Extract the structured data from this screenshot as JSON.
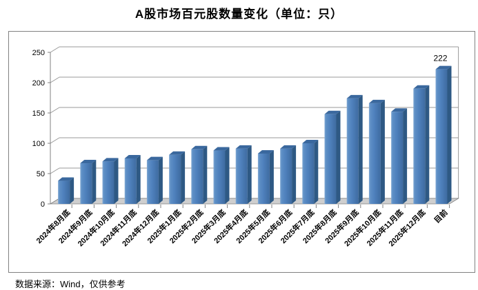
{
  "chart_data": {
    "type": "bar",
    "style": "3d-column",
    "title": "A股市场百元股数量变化（单位：只）",
    "categories": [
      "2024年8月底",
      "2024年9月底",
      "2024年10月底",
      "2024年11月底",
      "2024年12月底",
      "2025年1月底",
      "2025年2月底",
      "2025年3月底",
      "2025年4月底",
      "2025年5月底",
      "2025年6月底",
      "2025年7月底",
      "2025年8月底",
      "2025年9月底",
      "2025年10月底",
      "2025年11月底",
      "2025年12月底",
      "目前"
    ],
    "values": [
      38,
      67,
      70,
      75,
      72,
      81,
      90,
      88,
      91,
      83,
      91,
      100,
      148,
      174,
      166,
      152,
      190,
      222
    ],
    "ylim": [
      0,
      250
    ],
    "yticks": [
      0,
      50,
      100,
      150,
      200,
      250
    ],
    "grid": true,
    "legend_position": "none",
    "bar_color": "#4F81BD",
    "bar_side_color": "#2E5984",
    "bar_top_color": "#3A689E",
    "bar_highlight_color": "#85ACD6",
    "grid_color": "#989898",
    "axis_color": "#808080",
    "floor_color": "#cfcfcf",
    "annotations": [
      {
        "category": "目前",
        "label": "222"
      }
    ]
  },
  "footer": {
    "source": "数据来源：Wind，仅供参考"
  }
}
